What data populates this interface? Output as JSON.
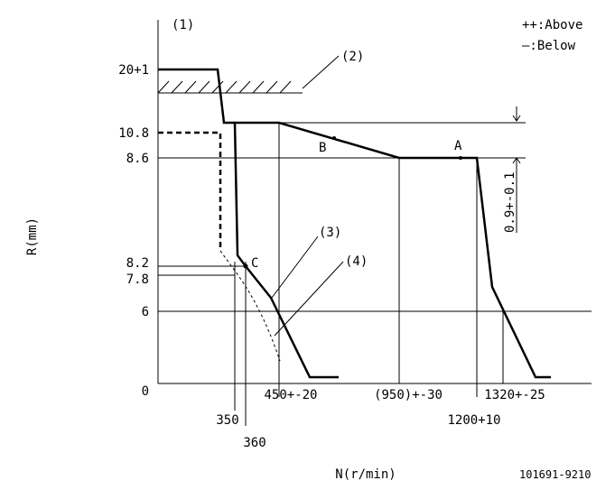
{
  "labels": {
    "item1": "(1)",
    "above": "++:Above",
    "below": "—:Below",
    "item2": "(2)",
    "item3": "(3)",
    "item4": "(4)",
    "a": "A",
    "b": "B",
    "c": "C",
    "tolerance": "0.9+-0.1",
    "code": "101691-9210"
  },
  "y_axis": {
    "title": "R(mm)",
    "ticks": [
      "20+1",
      "10.8",
      "8.6",
      "8.2",
      "7.8",
      "6",
      "0"
    ]
  },
  "x_axis": {
    "title": "N(r/min)",
    "ticks": [
      "350",
      "360",
      "450+-20",
      "(950)+-30",
      "1200+10",
      "1320+-25"
    ]
  }
}
